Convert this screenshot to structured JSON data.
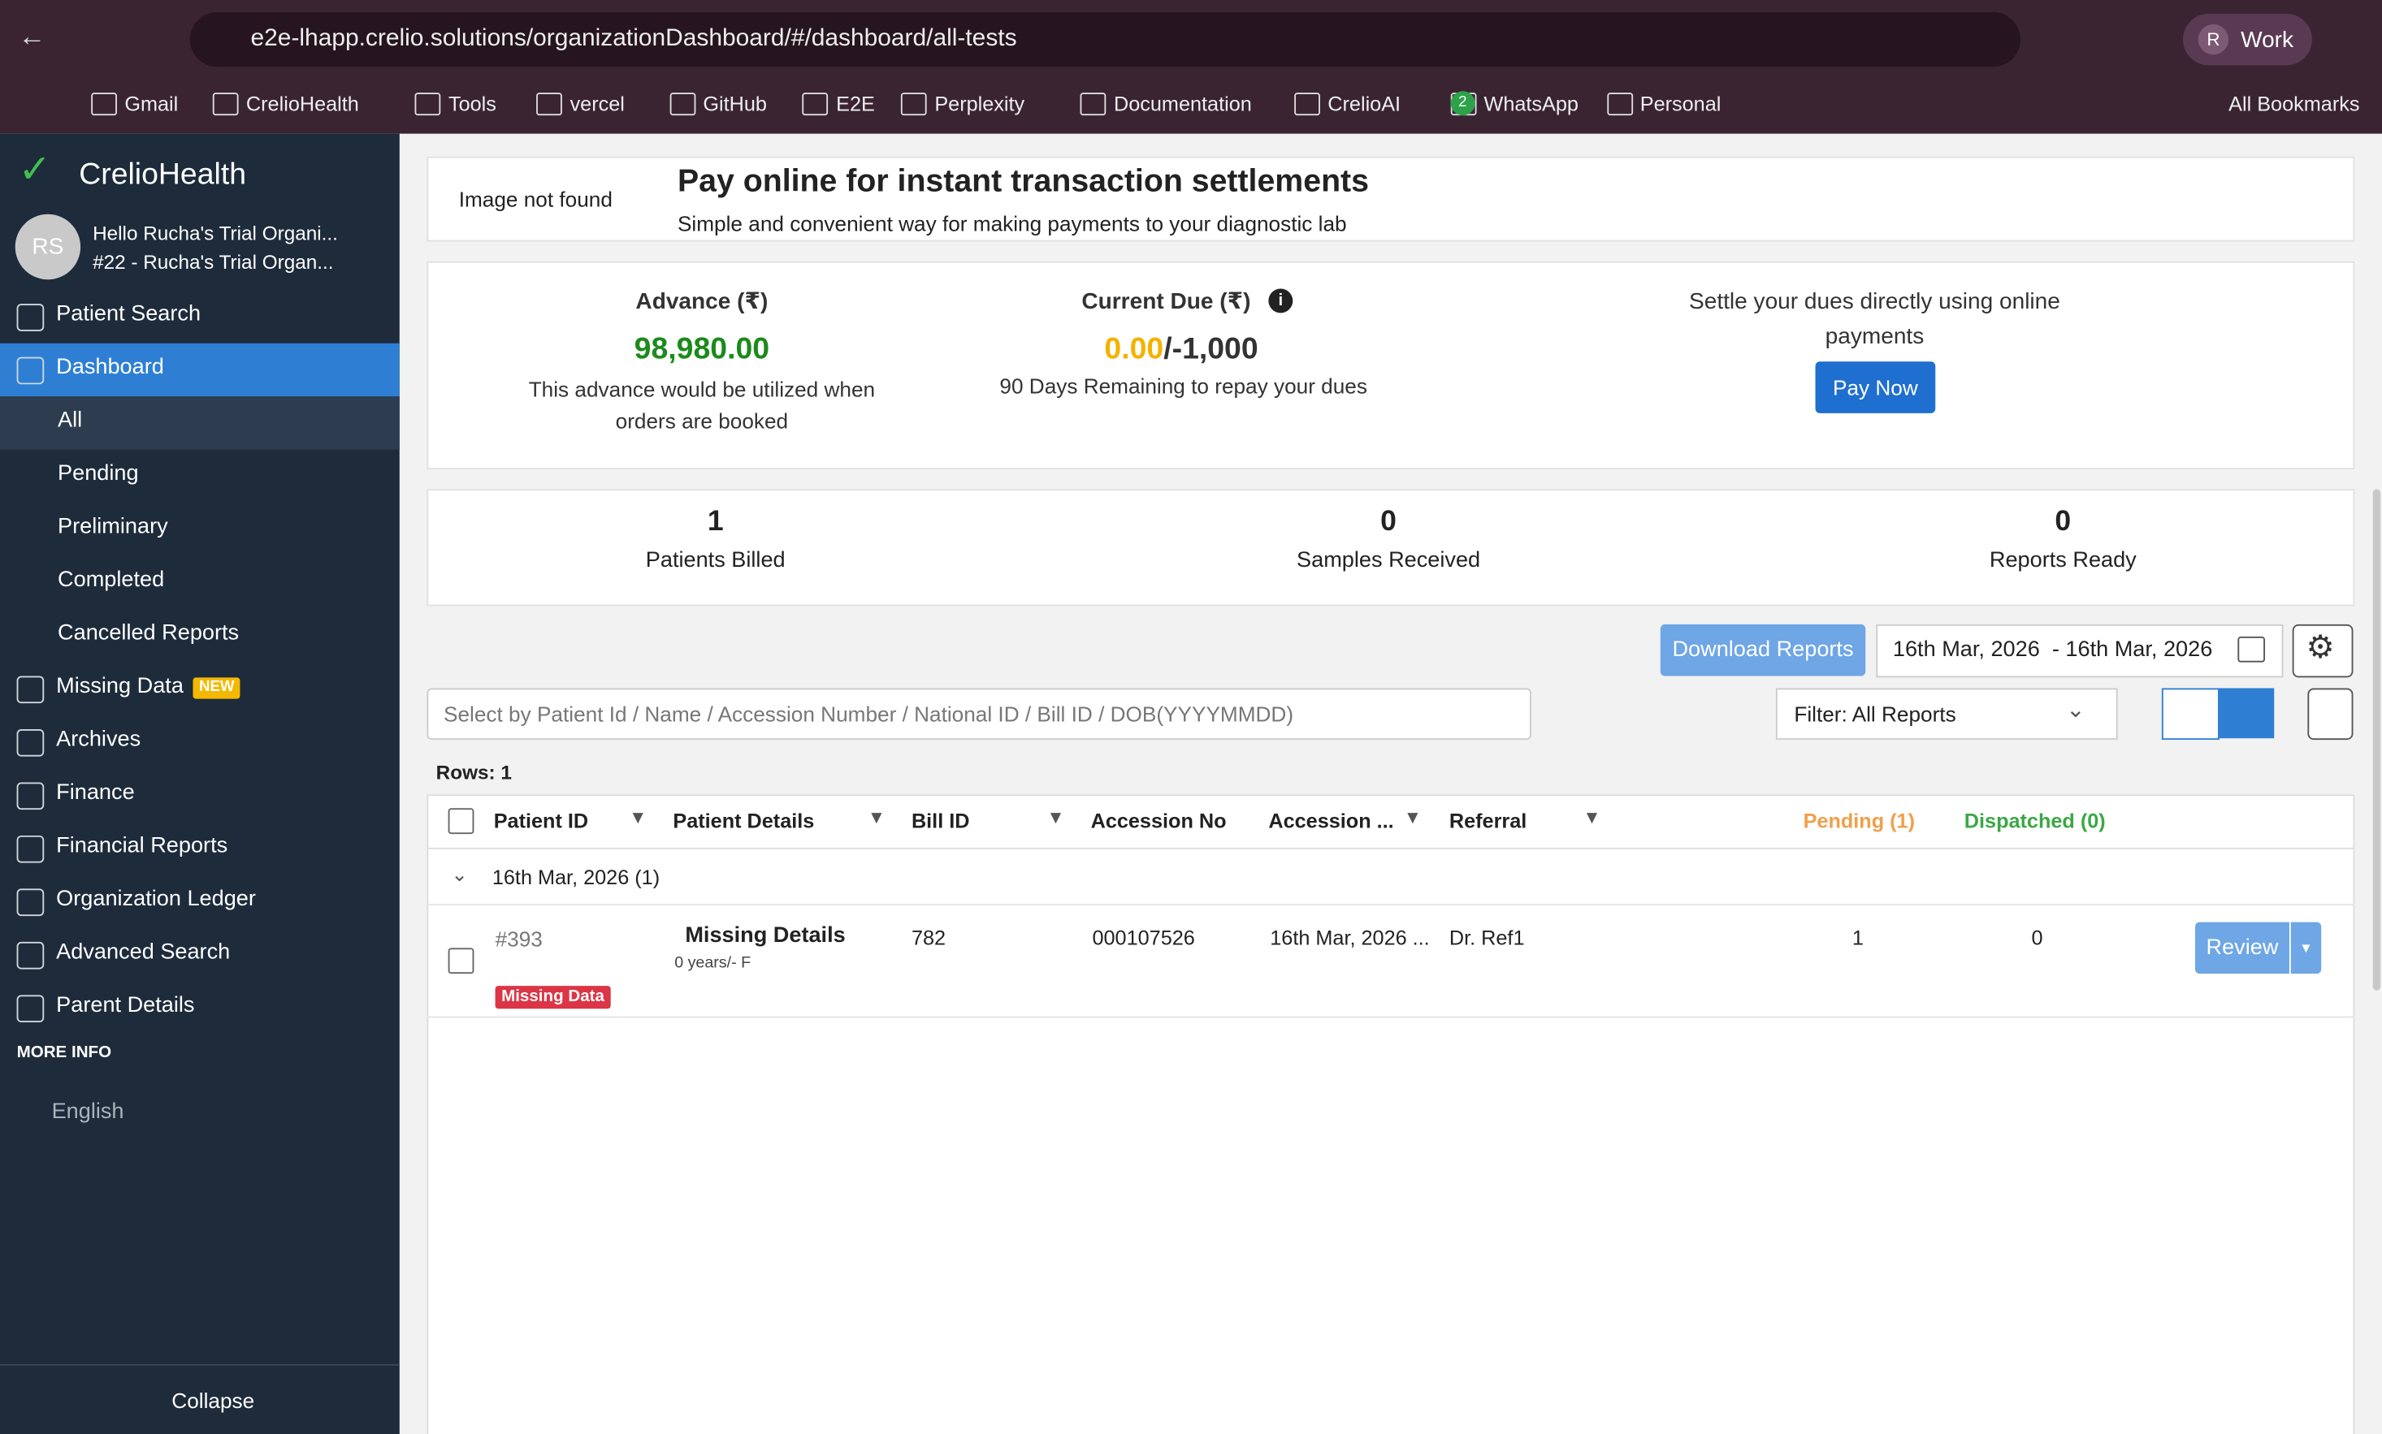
{
  "browser": {
    "url": "e2e-lhapp.crelio.solutions/organizationDashboard/#/dashboard/all-tests",
    "profile_initial": "R",
    "profile": "Work",
    "bookmarks": [
      "Gmail",
      "CrelioHealth",
      "Tools",
      "vercel",
      "GitHub",
      "E2E",
      "Perplexity",
      "Documentation",
      "CrelioAI",
      "WhatsApp",
      "Personal"
    ],
    "whatsapp_badge": "2",
    "all_bookmarks": "All Bookmarks"
  },
  "sidebar": {
    "brand": "CrelioHealth",
    "avatar": "RS",
    "greeting": "Hello Rucha's Trial Organi...",
    "org": "#22 - Rucha's Trial Organ...",
    "menu_top": [
      "Patient Search",
      "Dashboard"
    ],
    "submenu": [
      "All",
      "Pending",
      "Preliminary",
      "Completed",
      "Cancelled Reports"
    ],
    "menu_bottom": [
      "Missing Data",
      "Archives",
      "Finance",
      "Financial Reports",
      "Organization Ledger",
      "Advanced Search",
      "Parent Details"
    ],
    "new_badge": "NEW",
    "more_info": "MORE INFO",
    "language": "English",
    "collapse": "Collapse"
  },
  "banner": {
    "image_alt": "Image not found",
    "title": "Pay online for instant transaction settlements",
    "subtitle": "Simple and convenient way for making payments to your diagnostic lab"
  },
  "balance": {
    "advance_label": "Advance (₹)",
    "advance_amount": "98,980.00",
    "advance_note": "This advance would be utilized when orders are booked",
    "due_label": "Current Due (₹)",
    "due_paid": "0.00",
    "due_total": "/-1,000",
    "due_note": "90 Days Remaining to repay your dues",
    "settle_text": "Settle your dues directly using online payments",
    "pay_button": "Pay Now"
  },
  "stats": [
    {
      "value": 1,
      "label": "Patients Billed"
    },
    {
      "value": 0,
      "label": "Samples Received"
    },
    {
      "value": 0,
      "label": "Reports Ready"
    }
  ],
  "toolbar": {
    "download": "Download Reports",
    "date_range": "16th Mar, 2026  - 16th Mar, 2026",
    "search_placeholder": "Select by Patient Id / Name / Accession Number / National ID / Bill ID / DOB(YYYYMMDD)",
    "filter": "Filter: All Reports"
  },
  "table": {
    "rows_label": "Rows: 1",
    "columns": [
      "Patient ID",
      "Patient Details",
      "Bill ID",
      "Accession No",
      "Accession ...",
      "Referral",
      "Pending (1)",
      "Dispatched (0)"
    ],
    "group": "16th Mar, 2026 (1)",
    "rows": [
      {
        "patient_id": "#393",
        "badge": "Missing Data",
        "name": "Missing Details",
        "age": "0 years/- F",
        "bill_id": "782",
        "accession_no": "000107526",
        "accession_date": "16th Mar, 2026 ...",
        "referral": "Dr. Ref1",
        "pending": 1,
        "dispatched": 0,
        "action": "Review"
      }
    ]
  }
}
